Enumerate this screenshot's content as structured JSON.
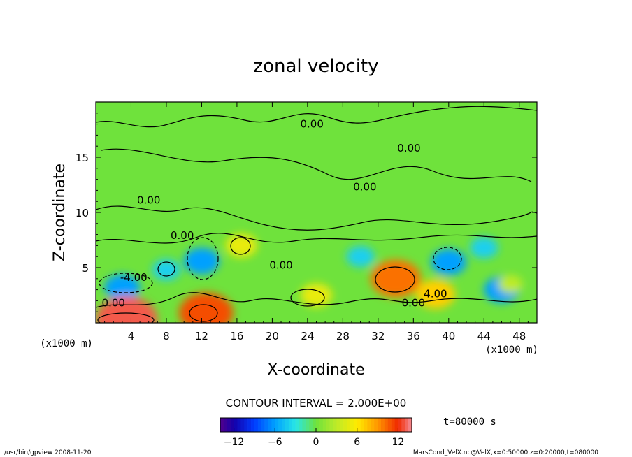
{
  "chart_data": {
    "type": "heatmap",
    "title": "zonal velocity",
    "xlabel": "X-coordinate",
    "ylabel": "Z-coordinate",
    "x_unit": "(x1000 m)",
    "z_unit": "(x1000 m)",
    "xlim": [
      0,
      50
    ],
    "ylim": [
      0,
      20
    ],
    "x_ticks": [
      4,
      8,
      12,
      16,
      20,
      24,
      28,
      32,
      36,
      40,
      44,
      48
    ],
    "y_ticks": [
      5,
      10,
      15
    ],
    "contour_interval_text": "CONTOUR INTERVAL = 2.000E+00",
    "time_text": "t=80000 s",
    "colorbar_range": [
      -14,
      14
    ],
    "colorbar_ticks": [
      -12,
      -6,
      0,
      6,
      12
    ],
    "contour_labels": [
      {
        "text": "0.00",
        "x": 24.5,
        "z": 17.7
      },
      {
        "text": "0.00",
        "x": 35.5,
        "z": 15.5
      },
      {
        "text": "0.00",
        "x": 30.5,
        "z": 12.0
      },
      {
        "text": "0.00",
        "x": 6.0,
        "z": 10.8
      },
      {
        "text": "0.00",
        "x": 9.8,
        "z": 7.6
      },
      {
        "text": "0.00",
        "x": 21.0,
        "z": 4.9
      },
      {
        "text": "-4.00",
        "x": 4.3,
        "z": 3.8
      },
      {
        "text": "0.00",
        "x": 2.0,
        "z": 1.5
      },
      {
        "text": "0.00",
        "x": 36.0,
        "z": 1.5
      },
      {
        "text": "4.00",
        "x": 38.5,
        "z": 2.3
      }
    ],
    "features": [
      {
        "kind": "min",
        "x": 12,
        "z": 5.6,
        "value": -6
      },
      {
        "kind": "min",
        "x": 3,
        "z": 3.2,
        "value": -6
      },
      {
        "kind": "min",
        "x": 30,
        "z": 6.0,
        "value": -4
      },
      {
        "kind": "min",
        "x": 40,
        "z": 5.5,
        "value": -6
      },
      {
        "kind": "min",
        "x": 44,
        "z": 6.8,
        "value": -4
      },
      {
        "kind": "min",
        "x": 46,
        "z": 3.0,
        "value": -6
      },
      {
        "kind": "min",
        "x": 8,
        "z": 4.8,
        "value": -4
      },
      {
        "kind": "max",
        "x": 3.5,
        "z": 0.3,
        "value": 13
      },
      {
        "kind": "max",
        "x": 12.5,
        "z": 0.9,
        "value": 11
      },
      {
        "kind": "max",
        "x": 34,
        "z": 4.0,
        "value": 10
      },
      {
        "kind": "max",
        "x": 38.5,
        "z": 2.6,
        "value": 7
      },
      {
        "kind": "max",
        "x": 16.5,
        "z": 7.0,
        "value": 5
      },
      {
        "kind": "max",
        "x": 25,
        "z": 2.5,
        "value": 5
      },
      {
        "kind": "max",
        "x": 47,
        "z": 3.5,
        "value": 3
      }
    ]
  },
  "footer": {
    "left": "/usr/bin/gpview  2008-11-20",
    "right": "MarsCond_VelX.nc@VelX,x=0:50000,z=0:20000,t=080000"
  },
  "colors": {
    "background": "#ffffff",
    "axis": "#000000",
    "field_base": "#6fe23c"
  }
}
